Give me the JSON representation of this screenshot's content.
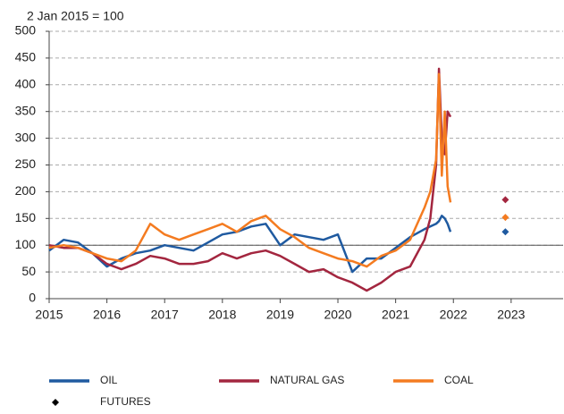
{
  "chart_data": {
    "type": "line",
    "y_label": "2 Jan 2015 = 100",
    "x": [
      2015,
      2015.25,
      2015.5,
      2015.75,
      2016,
      2016.25,
      2016.5,
      2016.75,
      2017,
      2017.25,
      2017.5,
      2017.75,
      2018,
      2018.25,
      2018.5,
      2018.75,
      2019,
      2019.25,
      2019.5,
      2019.75,
      2020,
      2020.25,
      2020.5,
      2020.75,
      2021,
      2021.25,
      2021.5,
      2021.6,
      2021.7,
      2021.75,
      2021.8,
      2021.85,
      2021.9,
      2021.95
    ],
    "series": [
      {
        "name": "OIL",
        "color": "#1f5aa0",
        "values": [
          90,
          110,
          105,
          85,
          60,
          75,
          85,
          90,
          100,
          95,
          90,
          105,
          120,
          125,
          135,
          140,
          100,
          120,
          115,
          110,
          120,
          50,
          75,
          75,
          95,
          115,
          130,
          135,
          140,
          145,
          155,
          150,
          140,
          125
        ]
      },
      {
        "name": "NATURAL GAS",
        "color": "#a3263f",
        "values": [
          100,
          95,
          95,
          85,
          65,
          55,
          65,
          80,
          75,
          65,
          65,
          70,
          85,
          75,
          85,
          90,
          80,
          65,
          50,
          55,
          40,
          30,
          15,
          30,
          50,
          60,
          110,
          150,
          250,
          430,
          300,
          270,
          350,
          340
        ]
      },
      {
        "name": "COAL",
        "color": "#f47b20",
        "values": [
          95,
          100,
          95,
          85,
          75,
          70,
          90,
          140,
          120,
          110,
          120,
          130,
          140,
          125,
          145,
          155,
          130,
          115,
          95,
          85,
          75,
          70,
          60,
          80,
          90,
          110,
          170,
          200,
          260,
          420,
          230,
          350,
          210,
          180
        ]
      }
    ],
    "futures": {
      "name": "FUTURES",
      "color": "#000000",
      "x": 2022.9,
      "values": [
        125,
        185,
        152
      ]
    },
    "reference_line": 100,
    "xlim": [
      2015,
      2023.9
    ],
    "xticks": [
      2015,
      2016,
      2017,
      2018,
      2019,
      2020,
      2021,
      2022,
      2023
    ],
    "ylim": [
      0,
      500
    ],
    "yticks": [
      0,
      50,
      100,
      150,
      200,
      250,
      300,
      350,
      400,
      450,
      500
    ],
    "grid": true
  }
}
